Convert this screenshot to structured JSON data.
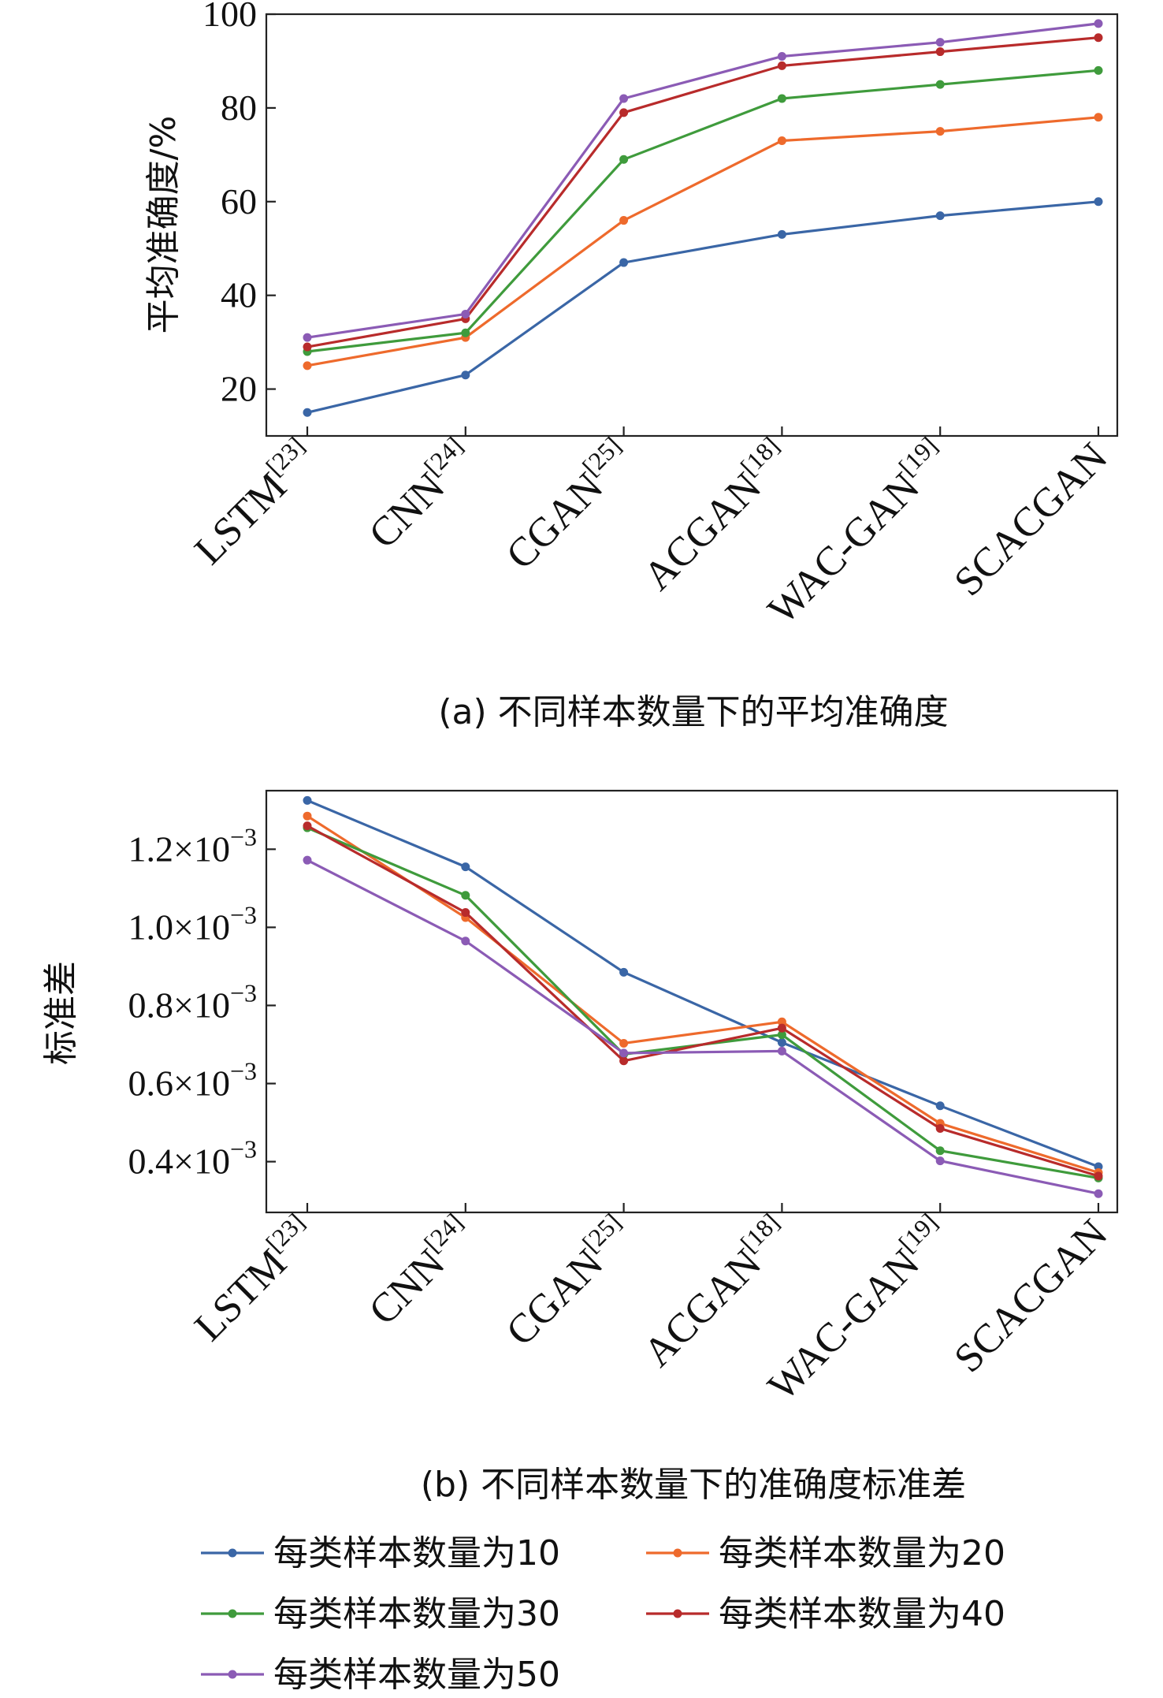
{
  "chart_data": [
    {
      "type": "line",
      "categories": [
        "LSTM[23]",
        "CNN[24]",
        "CGAN[25]",
        "ACGAN[18]",
        "WAC-GAN[19]",
        "SCACGAN"
      ],
      "category_labels": [
        {
          "base": "LSTM",
          "sup": "[23]"
        },
        {
          "base": "CNN",
          "sup": "[24]"
        },
        {
          "base": "CGAN",
          "sup": "[25]"
        },
        {
          "base": "ACGAN",
          "sup": "[18]"
        },
        {
          "base": "WAC-GAN",
          "sup": "[19]"
        },
        {
          "base": "SCACGAN",
          "sup": ""
        }
      ],
      "ylabel": "平均准确度/%",
      "ylim": [
        10,
        100
      ],
      "yticks": [
        20,
        40,
        60,
        80,
        100
      ],
      "ytick_labels": [
        "20",
        "40",
        "60",
        "80",
        "100"
      ],
      "caption": "(a) 不同样本数量下的平均准确度",
      "series": [
        {
          "name": "每类样本数量为10",
          "color": "#3a66a6",
          "values": [
            15,
            23,
            47,
            53,
            57,
            60
          ]
        },
        {
          "name": "每类样本数量为20",
          "color": "#ee6a2c",
          "values": [
            25,
            31,
            56,
            73,
            75,
            78
          ]
        },
        {
          "name": "每类样本数量为30",
          "color": "#3f9b3c",
          "values": [
            28,
            32,
            69,
            82,
            85,
            88
          ]
        },
        {
          "name": "每类样本数量为40",
          "color": "#b82b2b",
          "values": [
            29,
            35,
            79,
            89,
            92,
            95
          ]
        },
        {
          "name": "每类样本数量为50",
          "color": "#8b5bb5",
          "values": [
            31,
            36,
            82,
            91,
            94,
            98
          ]
        }
      ]
    },
    {
      "type": "line",
      "categories": [
        "LSTM[23]",
        "CNN[24]",
        "CGAN[25]",
        "ACGAN[18]",
        "WAC-GAN[19]",
        "SCACGAN"
      ],
      "category_labels": [
        {
          "base": "LSTM",
          "sup": "[23]"
        },
        {
          "base": "CNN",
          "sup": "[24]"
        },
        {
          "base": "CGAN",
          "sup": "[25]"
        },
        {
          "base": "ACGAN",
          "sup": "[18]"
        },
        {
          "base": "WAC-GAN",
          "sup": "[19]"
        },
        {
          "base": "SCACGAN",
          "sup": ""
        }
      ],
      "ylabel": "标准差",
      "ylim": [
        0.00027,
        0.00135
      ],
      "yticks": [
        0.0004,
        0.0006,
        0.0008,
        0.001,
        0.0012
      ],
      "ytick_labels": [
        {
          "mant": "0.4×10",
          "exp": "−3"
        },
        {
          "mant": "0.6×10",
          "exp": "−3"
        },
        {
          "mant": "0.8×10",
          "exp": "−3"
        },
        {
          "mant": "1.0×10",
          "exp": "−3"
        },
        {
          "mant": "1.2×10",
          "exp": "−3"
        }
      ],
      "caption": "(b) 不同样本数量下的准确度标准差",
      "series": [
        {
          "name": "每类样本数量为10",
          "color": "#3a66a6",
          "values": [
            0.001325,
            0.001155,
            0.000885,
            0.000705,
            0.000543,
            0.000387
          ]
        },
        {
          "name": "每类样本数量为20",
          "color": "#ee6a2c",
          "values": [
            0.001285,
            0.001025,
            0.000703,
            0.000758,
            0.000498,
            0.000372
          ]
        },
        {
          "name": "每类样本数量为30",
          "color": "#3f9b3c",
          "values": [
            0.001255,
            0.001082,
            0.000675,
            0.000725,
            0.000428,
            0.000358
          ]
        },
        {
          "name": "每类样本数量为40",
          "color": "#b82b2b",
          "values": [
            0.00126,
            0.001038,
            0.000658,
            0.000742,
            0.000485,
            0.000363
          ]
        },
        {
          "name": "每类样本数量为50",
          "color": "#8b5bb5",
          "values": [
            0.001172,
            0.000965,
            0.000678,
            0.000683,
            0.000402,
            0.000318
          ]
        }
      ]
    }
  ],
  "legend": {
    "placement": "bottom",
    "items": [
      {
        "label": "每类样本数量为10",
        "color": "#3a66a6"
      },
      {
        "label": "每类样本数量为20",
        "color": "#ee6a2c"
      },
      {
        "label": "每类样本数量为30",
        "color": "#3f9b3c"
      },
      {
        "label": "每类样本数量为40",
        "color": "#b82b2b"
      },
      {
        "label": "每类样本数量为50",
        "color": "#8b5bb5"
      }
    ]
  }
}
